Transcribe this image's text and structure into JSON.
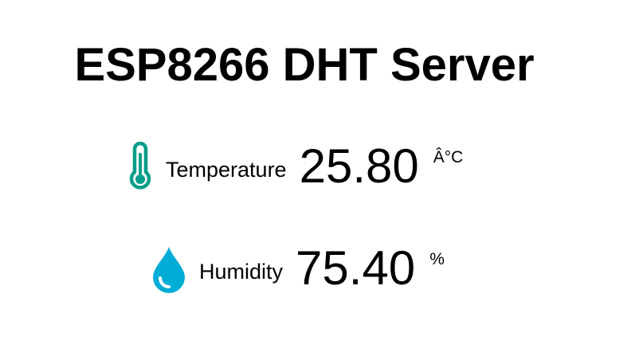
{
  "page": {
    "title": "ESP8266 DHT Server"
  },
  "readings": {
    "temperature": {
      "label": "Temperature",
      "value": "25.80",
      "unit": "Â°C",
      "icon": "thermometer-icon",
      "icon_color": "#059e8a"
    },
    "humidity": {
      "label": "Humidity",
      "value": "75.40",
      "unit": "%",
      "icon": "droplet-icon",
      "icon_color": "#00add6"
    }
  }
}
